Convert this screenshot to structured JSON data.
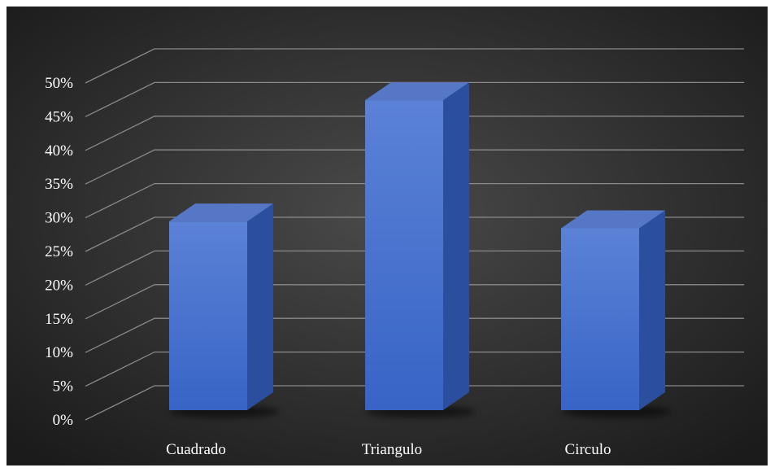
{
  "chart_data": {
    "type": "bar",
    "title": "",
    "xlabel": "",
    "ylabel": "",
    "categories": [
      "Cuadrado",
      "Triangulo",
      "Circulo"
    ],
    "values": [
      28,
      46,
      27
    ],
    "ylim": [
      0,
      50
    ],
    "y_ticks": [
      "0%",
      "5%",
      "10%",
      "15%",
      "20%",
      "25%",
      "30%",
      "35%",
      "40%",
      "45%",
      "50%"
    ],
    "grid": true,
    "legend": "none",
    "colors": {
      "background_center": "#4a4a4a",
      "background_edge": "#1b1b1b",
      "bar_front_top": "#5b82d6",
      "bar_front_bottom": "#3764c6",
      "bar_side": "#2b4f9e",
      "bar_top": "#5577c5",
      "grid": "#8a8a8a",
      "text": "#ffffff"
    }
  }
}
